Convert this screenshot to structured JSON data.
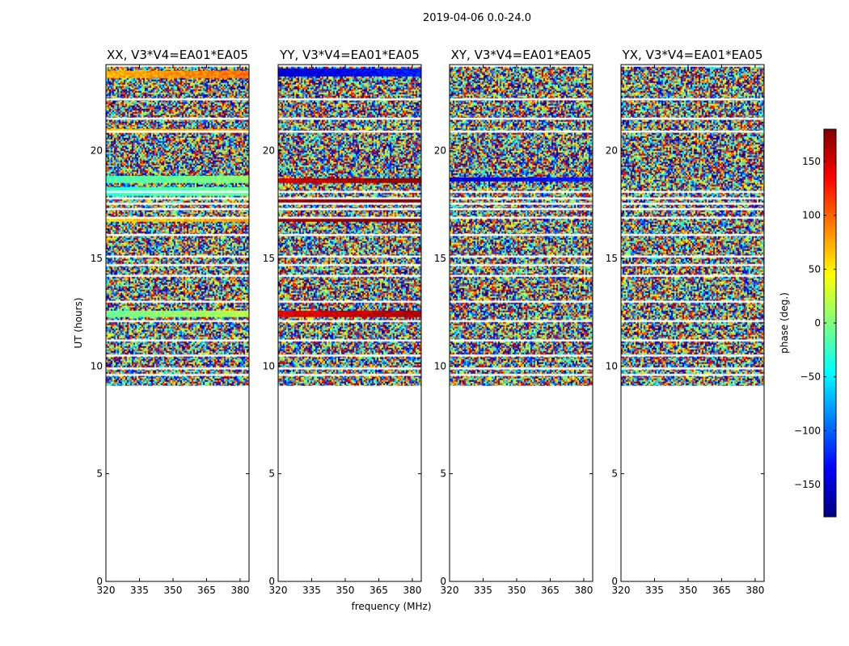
{
  "figure": {
    "suptitle": "2019-04-06 0.0-24.0",
    "xlabel": "frequency (MHz)",
    "ylabel": "UT (hours)"
  },
  "colorbar": {
    "label": "phase (deg.)",
    "range": [
      -180,
      180
    ],
    "ticks": [
      150,
      100,
      50,
      0,
      -50,
      -100,
      -150
    ],
    "tick_labels": [
      "150",
      "100",
      "50",
      "0",
      "−50",
      "−100",
      "−150"
    ],
    "colormap": "jet",
    "stops": [
      "#00007f",
      "#0000ff",
      "#007fff",
      "#00ffff",
      "#7fff7f",
      "#ffff00",
      "#ff7f00",
      "#ff0000",
      "#7f0000"
    ]
  },
  "chart_data": {
    "type": "heatmap",
    "x_range": [
      320,
      384
    ],
    "y_range": [
      0,
      24
    ],
    "x_ticks": [
      320,
      335,
      350,
      365,
      380
    ],
    "x_tick_labels": [
      "320",
      "335",
      "350",
      "365",
      "380"
    ],
    "y_ticks": [
      0,
      5,
      10,
      15,
      20
    ],
    "y_tick_labels": [
      "0",
      "5",
      "10",
      "15",
      "20"
    ],
    "data_start_ut": 9.1,
    "data_end_ut": 23.9,
    "flagged_ut": [
      22.4,
      21.5,
      20.9,
      18.1,
      17.8,
      17.55,
      17.3,
      16.9,
      16.1,
      15.1,
      14.7,
      14.2,
      13.0,
      12.1,
      11.2,
      10.5,
      9.9,
      9.6
    ],
    "series": [
      {
        "name": "XX",
        "title": "XX, V3*V4=EA01*EA05",
        "bands": [
          {
            "ut": [
              23.4,
              23.7
            ],
            "phase": 70
          },
          {
            "ut": [
              20.85,
              21.0
            ],
            "phase": 60
          },
          {
            "ut": [
              18.5,
              18.8
            ],
            "phase": -20
          },
          {
            "ut": [
              17.9,
              18.3
            ],
            "phase": -30
          },
          {
            "ut": [
              16.7,
              16.85
            ],
            "phase": 55
          },
          {
            "ut": [
              12.3,
              12.55
            ],
            "phase": -5
          }
        ]
      },
      {
        "name": "YY",
        "title": "YY, V3*V4=EA01*EA05",
        "bands": [
          {
            "ut": [
              23.45,
              23.8
            ],
            "phase": -150
          },
          {
            "ut": [
              18.5,
              18.7
            ],
            "phase": 150
          },
          {
            "ut": [
              17.6,
              17.8
            ],
            "phase": 170
          },
          {
            "ut": [
              16.7,
              16.85
            ],
            "phase": 165
          },
          {
            "ut": [
              12.3,
              12.55
            ],
            "phase": 140
          }
        ]
      },
      {
        "name": "XY",
        "title": "XY, V3*V4=EA01*EA05",
        "bands": [
          {
            "ut": [
              18.6,
              18.75
            ],
            "phase": -150
          }
        ]
      },
      {
        "name": "YX",
        "title": "YX, V3*V4=EA01*EA05",
        "bands": []
      }
    ]
  }
}
